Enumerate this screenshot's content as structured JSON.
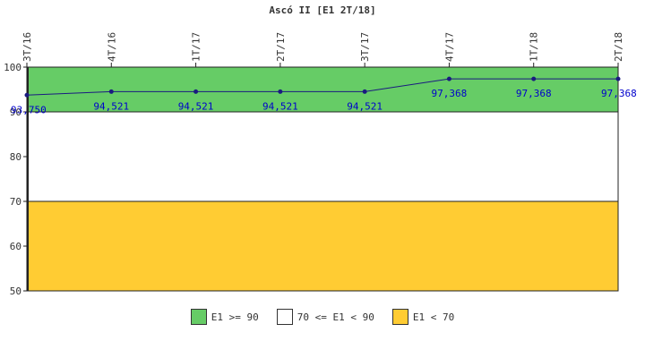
{
  "chart_data": {
    "type": "line",
    "title": "Ascó II [E1 2T/18]",
    "categories": [
      "3T/16",
      "4T/16",
      "1T/17",
      "2T/17",
      "3T/17",
      "4T/17",
      "1T/18",
      "2T/18"
    ],
    "series": [
      {
        "values": [
          93.75,
          94.521,
          94.521,
          94.521,
          94.521,
          97.368,
          97.368,
          97.368
        ],
        "labels": [
          "93,750",
          "94,521",
          "94,521",
          "94,521",
          "94,521",
          "97,368",
          "97,368",
          "97,368"
        ],
        "color": "#1a1a80",
        "label_color": "#0000cc"
      }
    ],
    "ylim": [
      50,
      100
    ],
    "yticks": [
      50,
      60,
      70,
      80,
      90,
      100
    ],
    "xlabel": "",
    "ylabel": "",
    "bands": [
      {
        "from": 90,
        "to": 100,
        "color": "#66cc66",
        "label": "E1 >= 90"
      },
      {
        "from": 70,
        "to": 90,
        "color": "#ffffff",
        "label": "70 <= E1 < 90"
      },
      {
        "from": 50,
        "to": 70,
        "color": "#ffcc33",
        "label": "E1 < 70"
      }
    ],
    "legend_position": "bottom"
  }
}
